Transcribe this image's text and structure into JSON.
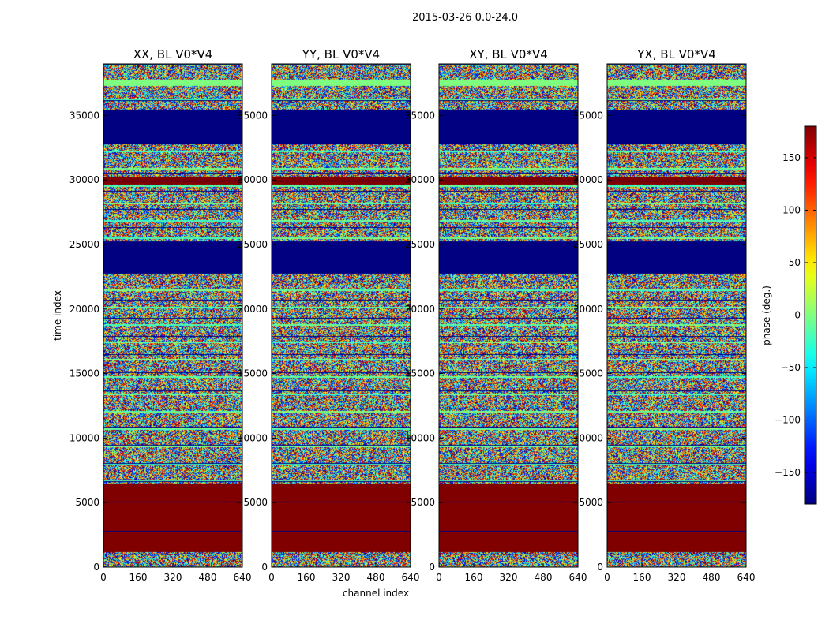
{
  "chart_data": {
    "type": "heatmap",
    "suptitle": "2015-03-26 0.0-24.0",
    "xlabel": "channel index",
    "ylabel": "time index",
    "xlim": [
      0,
      640
    ],
    "ylim": [
      0,
      39000
    ],
    "x_ticks": [
      "0",
      "160",
      "320",
      "480",
      "640"
    ],
    "y_ticks": [
      "0",
      "5000",
      "10000",
      "15000",
      "20000",
      "25000",
      "30000",
      "35000"
    ],
    "y_tick_values": [
      0,
      5000,
      10000,
      15000,
      20000,
      25000,
      30000,
      35000
    ],
    "panels": [
      {
        "title": "XX, BL V0*V4"
      },
      {
        "title": "YY, BL V0*V4"
      },
      {
        "title": "XY, BL V0*V4"
      },
      {
        "title": "YX, BL V0*V4"
      }
    ],
    "colorbar": {
      "label": "phase (deg.)",
      "range": [
        -180,
        180
      ],
      "ticks": [
        "−150",
        "−100",
        "−50",
        "0",
        "50",
        "100",
        "150"
      ],
      "tick_values": [
        -150,
        -100,
        -50,
        0,
        50,
        100,
        150
      ],
      "colormap": "jet"
    },
    "bands": [
      {
        "y0": 0,
        "y1": 1200,
        "kind": "noise"
      },
      {
        "y0": 1200,
        "y1": 6500,
        "kind": "dark-red"
      },
      {
        "y0": 6500,
        "y1": 10500,
        "kind": "noise"
      },
      {
        "y0": 10500,
        "y1": 14000,
        "kind": "noise"
      },
      {
        "y0": 14000,
        "y1": 16000,
        "kind": "noise"
      },
      {
        "y0": 16000,
        "y1": 22800,
        "kind": "noise"
      },
      {
        "y0": 22800,
        "y1": 25300,
        "kind": "dark-blue"
      },
      {
        "y0": 25300,
        "y1": 29700,
        "kind": "noise"
      },
      {
        "y0": 29700,
        "y1": 30300,
        "kind": "dark-red"
      },
      {
        "y0": 30300,
        "y1": 32800,
        "kind": "noise"
      },
      {
        "y0": 32800,
        "y1": 35500,
        "kind": "dark-blue"
      },
      {
        "y0": 35500,
        "y1": 37300,
        "kind": "noise"
      },
      {
        "y0": 37300,
        "y1": 37800,
        "kind": "light-green"
      },
      {
        "y0": 37800,
        "y1": 39000,
        "kind": "noise"
      }
    ]
  }
}
